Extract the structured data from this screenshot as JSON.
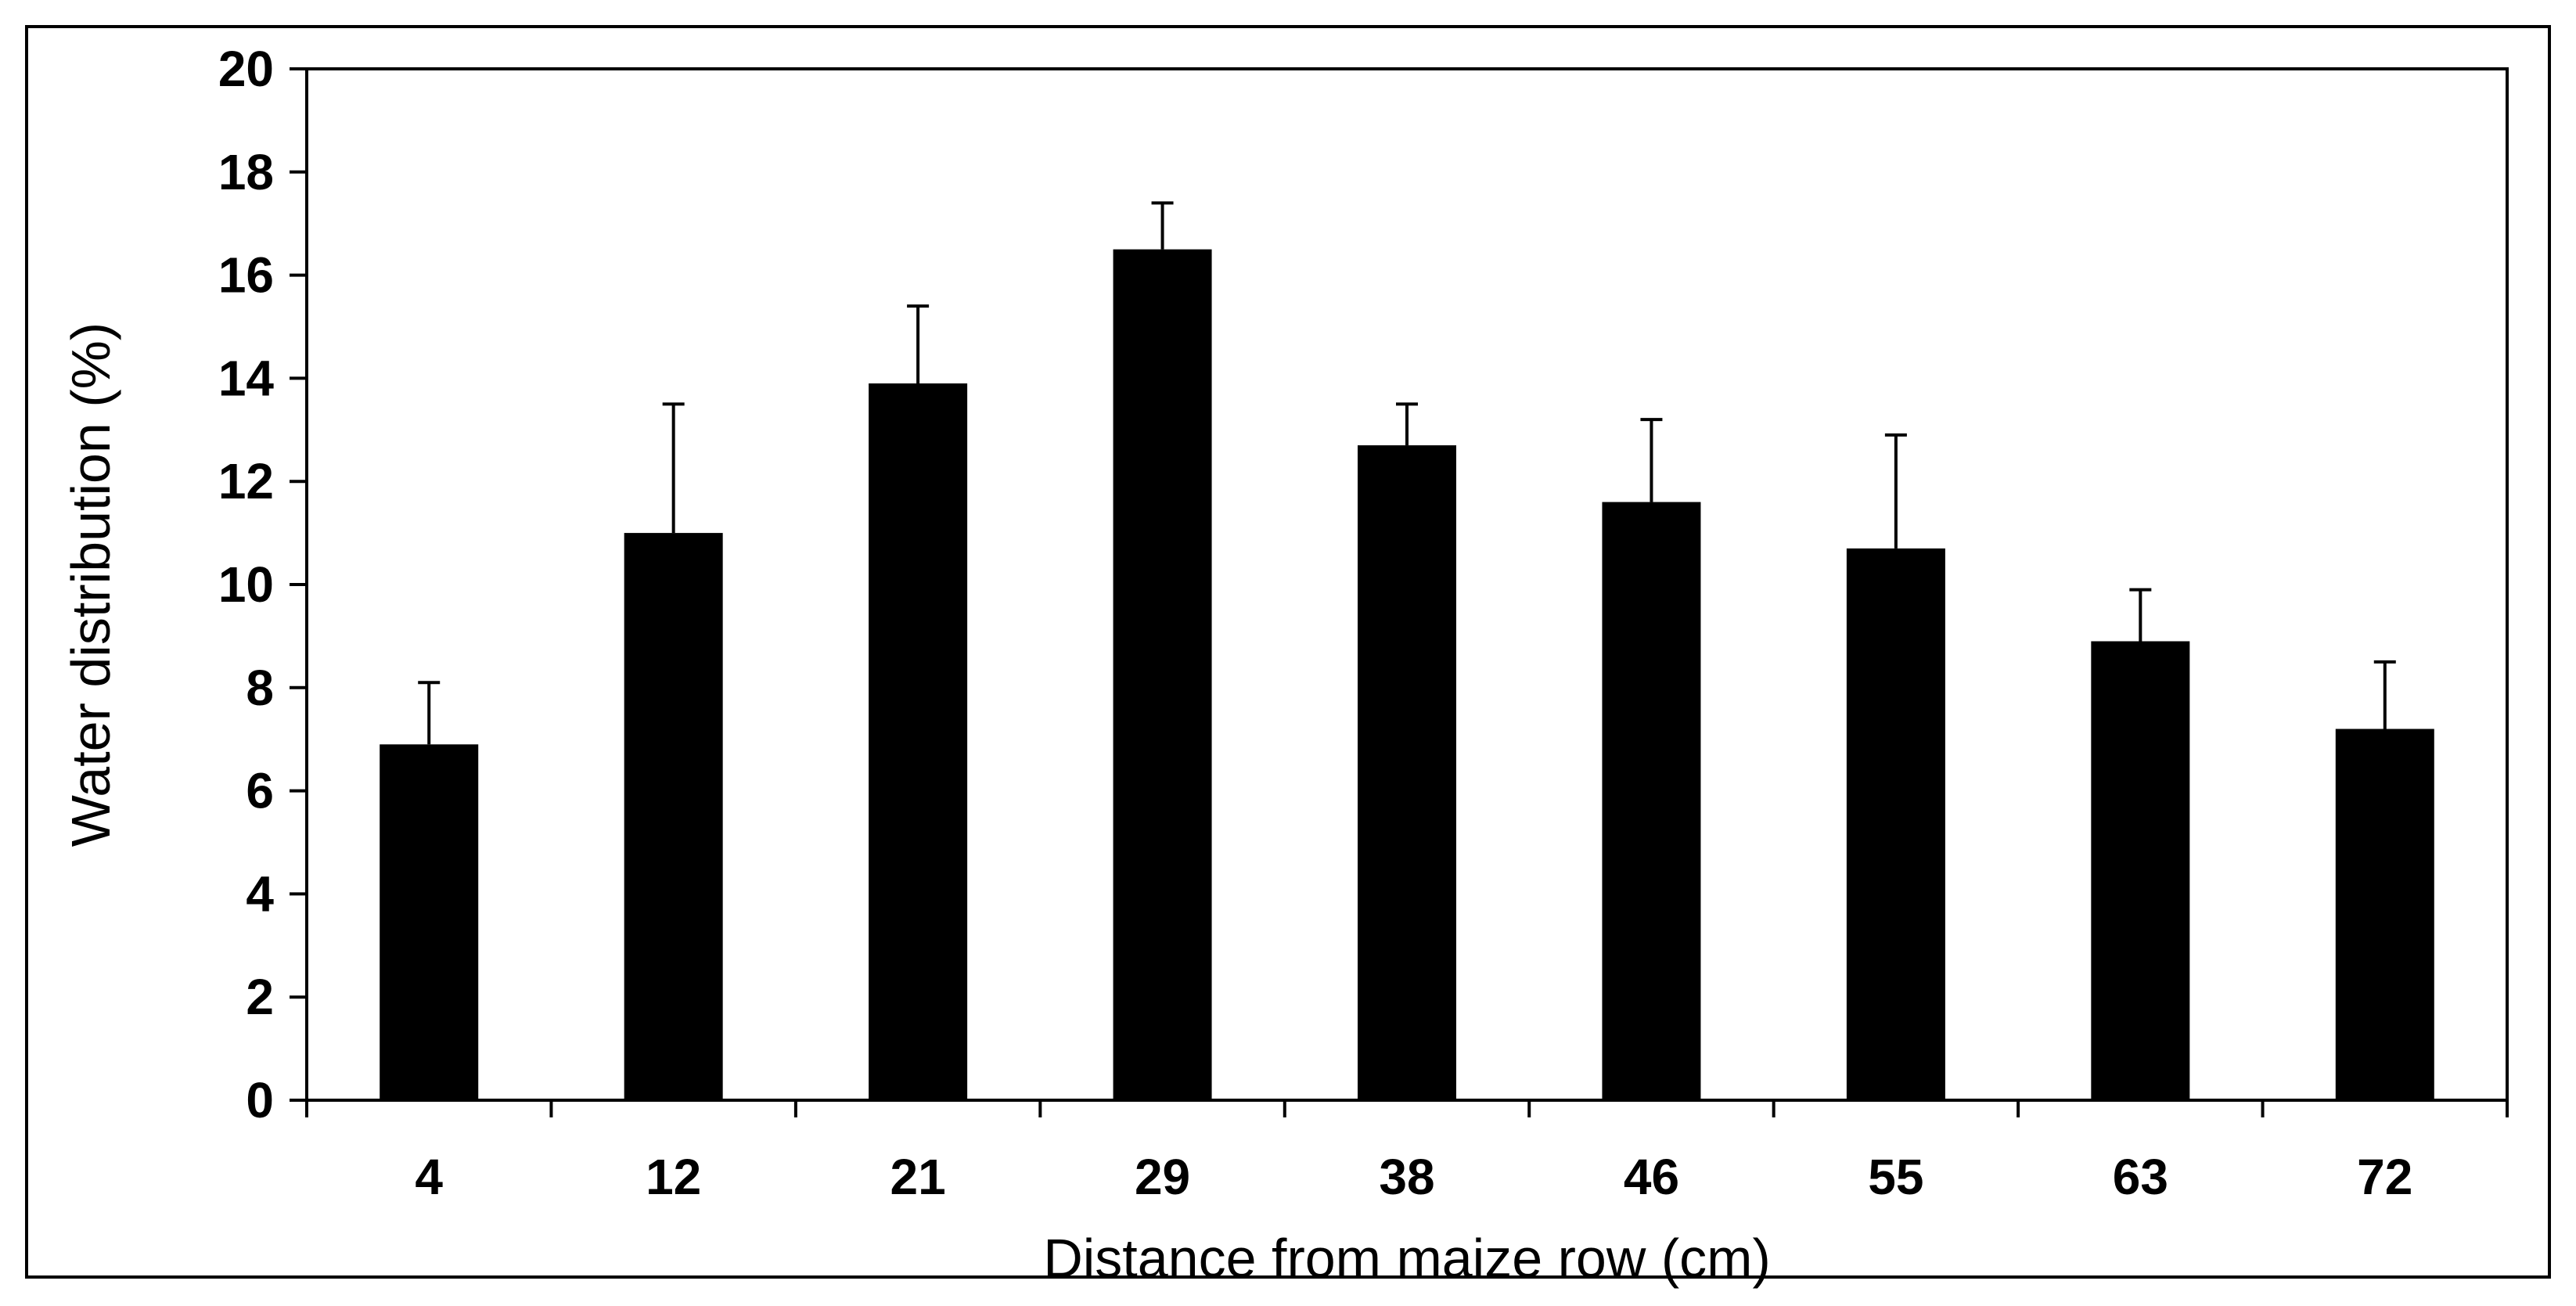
{
  "chart_data": {
    "type": "bar",
    "title": "",
    "xlabel": "Distance from maize row (cm)",
    "ylabel": "Water distribution (%)",
    "categories": [
      "4",
      "12",
      "21",
      "29",
      "38",
      "46",
      "55",
      "63",
      "72"
    ],
    "values": [
      6.9,
      11.0,
      13.9,
      16.5,
      12.7,
      11.6,
      10.7,
      8.9,
      7.2
    ],
    "error": [
      1.2,
      2.5,
      1.5,
      0.9,
      0.8,
      1.6,
      2.2,
      1.0,
      1.3
    ],
    "ylim": [
      0,
      20
    ],
    "yticks": [
      "0",
      "2",
      "4",
      "6",
      "8",
      "10",
      "12",
      "14",
      "16",
      "18",
      "20"
    ],
    "grid": false,
    "colors": {
      "bar": "#000000",
      "axis": "#000000",
      "background": "#ffffff"
    }
  }
}
